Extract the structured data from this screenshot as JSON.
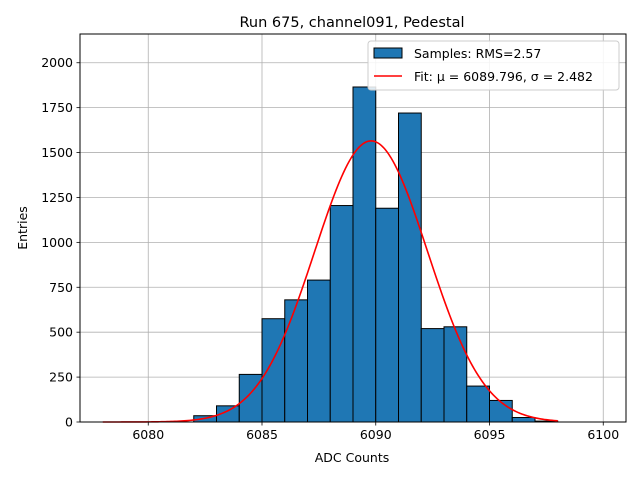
{
  "chart_data": {
    "type": "bar",
    "title": "Run 675, channel091, Pedestal",
    "xlabel": "ADC Counts",
    "ylabel": "Entries",
    "xlim": [
      6077.0,
      6101.0
    ],
    "ylim": [
      0,
      2160
    ],
    "xticks": [
      6080,
      6085,
      6090,
      6095,
      6100
    ],
    "yticks": [
      0,
      250,
      500,
      750,
      1000,
      1250,
      1500,
      1750,
      2000
    ],
    "grid": true,
    "legend": {
      "position": "top-right",
      "entries": [
        {
          "label": "Samples: RMS=2.57",
          "kind": "patch",
          "color": "#1f77b4"
        },
        {
          "label": "Fit: μ = 6089.796, σ = 2.482",
          "kind": "line",
          "color": "#ff0000"
        }
      ]
    },
    "histogram": {
      "name": "Samples",
      "color": "#1f77b4",
      "bins": [
        {
          "left": 6082,
          "right": 6083,
          "count": 35
        },
        {
          "left": 6083,
          "right": 6084,
          "count": 90
        },
        {
          "left": 6084,
          "right": 6085,
          "count": 265
        },
        {
          "left": 6085,
          "right": 6086,
          "count": 575
        },
        {
          "left": 6086,
          "right": 6087,
          "count": 680
        },
        {
          "left": 6087,
          "right": 6088,
          "count": 790
        },
        {
          "left": 6088,
          "right": 6089,
          "count": 1205
        },
        {
          "left": 6089,
          "right": 6090,
          "count": 1865
        },
        {
          "left": 6090,
          "right": 6091,
          "count": 1190
        },
        {
          "left": 6091,
          "right": 6092,
          "count": 1720
        },
        {
          "left": 6092,
          "right": 6093,
          "count": 520
        },
        {
          "left": 6093,
          "right": 6094,
          "count": 530
        },
        {
          "left": 6094,
          "right": 6095,
          "count": 200
        },
        {
          "left": 6095,
          "right": 6096,
          "count": 120
        },
        {
          "left": 6096,
          "right": 6097,
          "count": 25
        },
        {
          "left": 6097,
          "right": 6098,
          "count": 5
        }
      ]
    },
    "fit": {
      "name": "Fit",
      "type": "gaussian",
      "color": "#ff0000",
      "mu": 6089.796,
      "sigma": 2.482,
      "amplitude": 1565,
      "x_range": [
        6078,
        6098
      ]
    }
  }
}
